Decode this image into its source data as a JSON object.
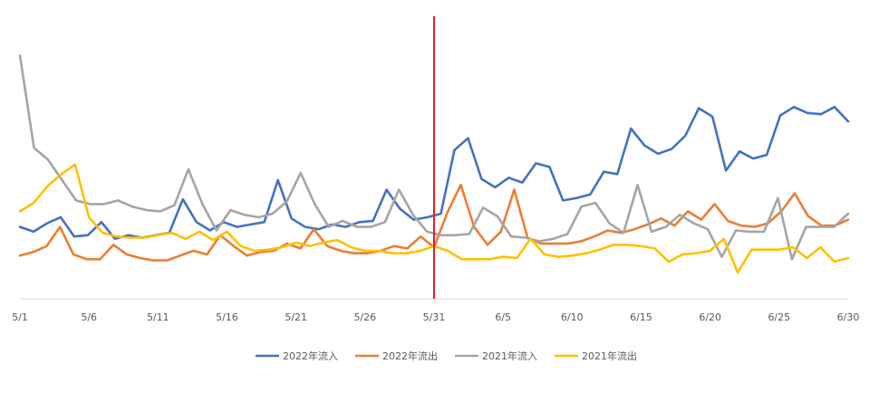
{
  "chart_data": {
    "type": "line",
    "title": "",
    "xlabel": "",
    "ylabel": "",
    "x_tick_labels": [
      "5/1",
      "5/6",
      "5/11",
      "5/16",
      "5/21",
      "5/26",
      "5/31",
      "6/5",
      "6/10",
      "6/15",
      "6/20",
      "6/25",
      "6/30"
    ],
    "y_axis_visible": false,
    "grid": false,
    "legend_position": "bottom",
    "marker_line": {
      "at": "5/31",
      "color": "#e02020"
    },
    "series": [
      {
        "name": "2022年流入",
        "color": "#4472c4",
        "values": [
          60,
          56,
          63,
          68,
          52,
          53,
          64,
          50,
          53,
          51,
          53,
          55,
          83,
          64,
          57,
          64,
          60,
          62,
          64,
          99,
          67,
          60,
          58,
          62,
          60,
          64,
          65,
          91,
          75,
          66,
          68,
          71,
          124,
          134,
          100,
          93,
          101,
          97,
          113,
          110,
          82,
          84,
          87,
          106,
          104,
          142,
          128,
          121,
          125,
          136,
          159,
          152,
          107,
          123,
          117,
          120,
          153,
          160,
          155,
          154,
          160,
          148
        ]
      },
      {
        "name": "2022年流出",
        "color": "#ed7d31",
        "values": [
          36,
          39,
          44,
          60,
          37,
          33,
          33,
          45,
          37,
          34,
          32,
          32,
          36,
          40,
          37,
          53,
          44,
          36,
          39,
          40,
          46,
          42,
          58,
          44,
          40,
          38,
          38,
          40,
          44,
          42,
          52,
          43,
          72,
          95,
          60,
          45,
          56,
          91,
          51,
          46,
          46,
          46,
          48,
          52,
          57,
          55,
          58,
          62,
          67,
          61,
          73,
          66,
          79,
          65,
          61,
          60,
          63,
          73,
          88,
          69,
          61,
          61,
          66
        ]
      },
      {
        "name": "2021年流入",
        "color": "#a5a5a5",
        "values": [
          203,
          126,
          116,
          99,
          82,
          79,
          79,
          82,
          77,
          74,
          73,
          78,
          108,
          79,
          57,
          74,
          70,
          68,
          71,
          81,
          105,
          79,
          60,
          65,
          60,
          60,
          64,
          91,
          70,
          56,
          53,
          53,
          54,
          76,
          69,
          52,
          51,
          48,
          50,
          54,
          77,
          80,
          63,
          55,
          95,
          56,
          60,
          70,
          63,
          58,
          35,
          57,
          56,
          56,
          84,
          33,
          60,
          60,
          60,
          71
        ]
      },
      {
        "name": "2021年流出",
        "color": "#ffc000",
        "values": [
          73,
          80,
          94,
          104,
          112,
          68,
          55,
          52,
          51,
          51,
          53,
          55,
          50,
          56,
          49,
          56,
          44,
          40,
          41,
          43,
          47,
          44,
          47,
          49,
          43,
          40,
          40,
          38,
          38,
          40,
          44,
          40,
          33,
          33,
          33,
          35,
          34,
          50,
          37,
          35,
          36,
          38,
          41,
          45,
          45,
          44,
          42,
          31,
          37,
          38,
          40,
          50,
          22,
          41,
          41,
          41,
          43,
          34,
          43,
          31,
          34
        ]
      }
    ]
  }
}
